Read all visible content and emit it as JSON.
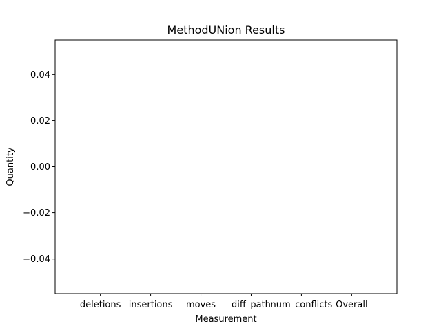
{
  "chart_data": {
    "type": "bar",
    "title": "MethodUNion Results",
    "xlabel": "Measurement",
    "ylabel": "Quantity",
    "categories": [
      "deletions",
      "insertions",
      "moves",
      "diff_path",
      "num_conflicts",
      "Overall"
    ],
    "values": [
      0,
      0,
      0,
      0,
      0,
      0
    ],
    "ylim": [
      -0.055,
      0.055
    ],
    "yticks": [
      "−0.04",
      "−0.02",
      "0.00",
      "0.02",
      "0.04"
    ],
    "ytick_values": [
      -0.04,
      -0.02,
      0.0,
      0.02,
      0.04
    ],
    "grid": false,
    "legend": "none"
  }
}
